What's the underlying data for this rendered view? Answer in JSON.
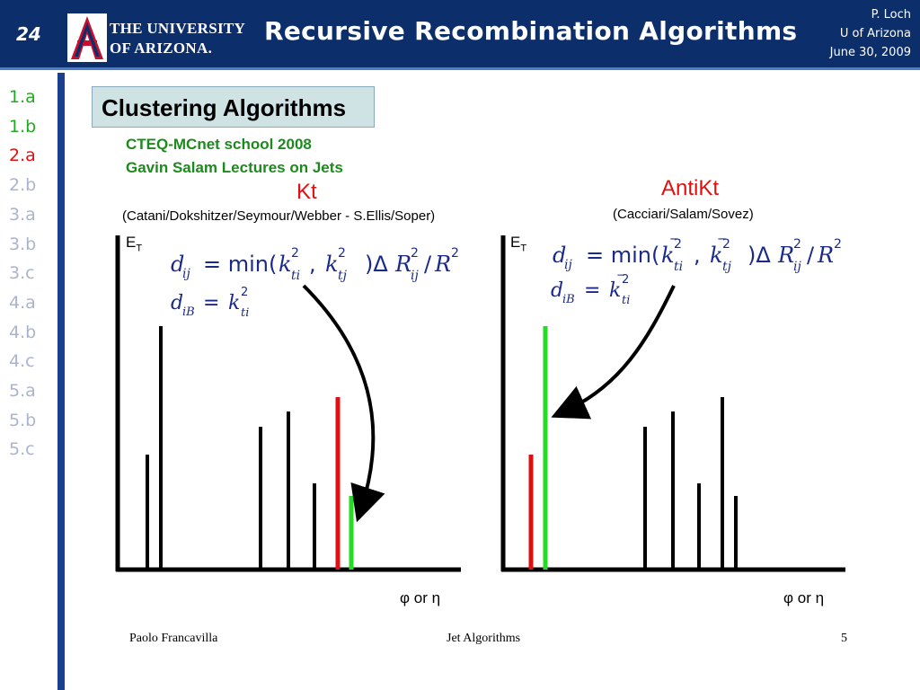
{
  "header": {
    "slide_number": "24",
    "university_line1": "THE UNIVERSITY",
    "university_line2": "OF ARIZONA.",
    "title": "Recursive Recombination Algorithms",
    "author": "P. Loch",
    "affiliation": "U of Arizona",
    "date": "June 30, 2009"
  },
  "sidebar": {
    "items": [
      {
        "label": "1.a",
        "state": "visited"
      },
      {
        "label": "1.b",
        "state": "visited"
      },
      {
        "label": "2.a",
        "state": "current"
      },
      {
        "label": "2.b",
        "state": "future"
      },
      {
        "label": "3.a",
        "state": "future"
      },
      {
        "label": "3.b",
        "state": "future"
      },
      {
        "label": "3.c",
        "state": "future"
      },
      {
        "label": "4.a",
        "state": "future"
      },
      {
        "label": "4.b",
        "state": "future"
      },
      {
        "label": "4.c",
        "state": "future"
      },
      {
        "label": "5.a",
        "state": "future"
      },
      {
        "label": "5.b",
        "state": "future"
      },
      {
        "label": "5.c",
        "state": "future"
      }
    ]
  },
  "content": {
    "section_title": "Clustering Algorithms",
    "credit_line1": "CTEQ-MCnet school 2008",
    "credit_line2": "Gavin Salam Lectures on Jets",
    "kt": {
      "title": "Kt",
      "authors": "(Catani/Dokshitzer/Seymour/Webber - S.Ellis/Soper)",
      "y_label": "E",
      "y_label_sub": "T",
      "x_label": "φ or η",
      "merged_pair": "red-green (narrow)"
    },
    "antikt": {
      "title": "AntiKt",
      "authors": "(Cacciari/Salam/Sovez)",
      "y_label": "E",
      "y_label_sub": "T",
      "x_label": "φ or η",
      "merged_pair": "red-green (hard)"
    }
  },
  "footer": {
    "presenter": "Paolo Francavilla",
    "topic": "Jet Algorithms",
    "page": "5"
  },
  "colors": {
    "header_bg": "#0c2e6b",
    "sidebar_rule": "#1b3f8f",
    "visited": "#22a822",
    "current": "#e01010",
    "future": "#aab4cc",
    "merge_red": "#e01010",
    "merge_green": "#22dd22",
    "math": "#1a2a8a"
  },
  "icons": [
    "university-of-arizona-logo",
    "merge-arrow-icon"
  ]
}
